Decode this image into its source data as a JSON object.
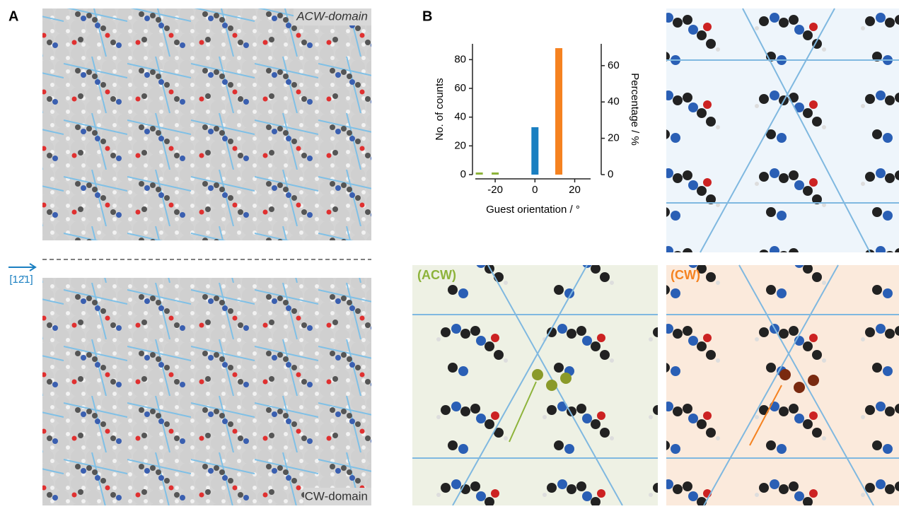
{
  "panels": {
    "a_label": "A",
    "b_label": "B",
    "acw_domain": "ACW-domain",
    "cw_domain": "CW-domain",
    "direction": "[12̄1]",
    "acw_tag": "(ACW)",
    "cw_tag": "(CW)"
  },
  "chart_data": {
    "type": "bar",
    "x_label": "Guest orientation / °",
    "y_label": "No. of counts",
    "y2_label": "Percentage / %",
    "x": [
      -28,
      -20,
      0,
      12
    ],
    "values": [
      1.5,
      1.5,
      33,
      88
    ],
    "colors": [
      "#8db33a",
      "#8db33a",
      "#1a7fc1",
      "#f58220"
    ],
    "xlim": [
      -30,
      28
    ],
    "xticks": [
      -20,
      0,
      20
    ],
    "ylim": [
      0,
      91
    ],
    "yticks": [
      0,
      20,
      40,
      60,
      80
    ],
    "y2lim": [
      0,
      72
    ],
    "y2ticks": [
      0,
      20,
      40,
      60
    ],
    "grid": false
  }
}
